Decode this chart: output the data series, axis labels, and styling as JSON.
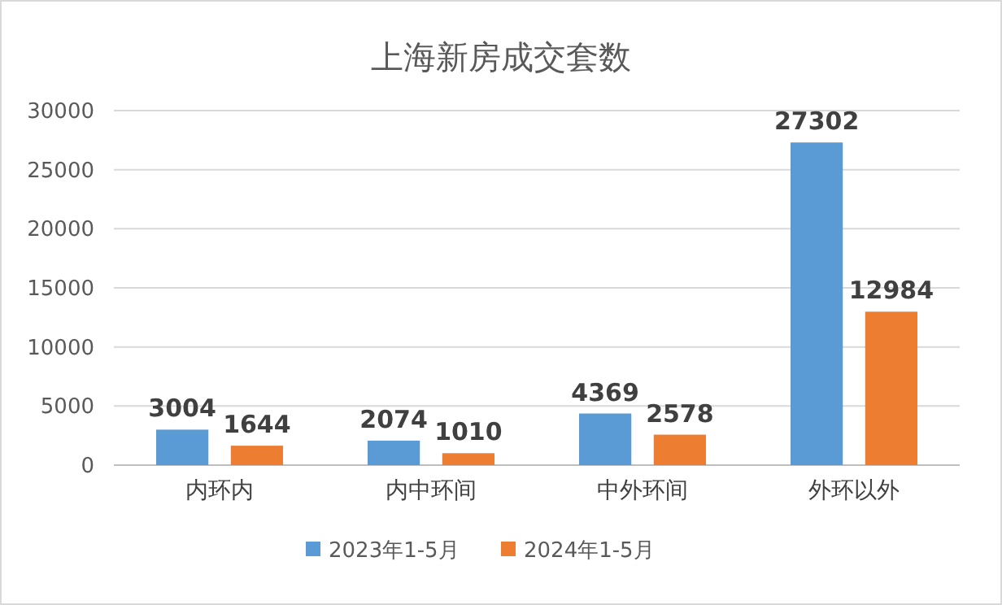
{
  "chart_data": {
    "type": "bar",
    "title": "上海新房成交套数",
    "categories": [
      "内环内",
      "内中环间",
      "中外环间",
      "外环以外"
    ],
    "series": [
      {
        "name": "2023年1-5月",
        "color": "#5b9bd5",
        "values": [
          3004,
          2074,
          4369,
          27302
        ]
      },
      {
        "name": "2024年1-5月",
        "color": "#ed7d31",
        "values": [
          1644,
          1010,
          2578,
          12984
        ]
      }
    ],
    "ylim": [
      0,
      30000
    ],
    "yticks": [
      0,
      5000,
      10000,
      15000,
      20000,
      25000,
      30000
    ],
    "grid": "y",
    "legend": "bottom",
    "data_labels": true
  }
}
